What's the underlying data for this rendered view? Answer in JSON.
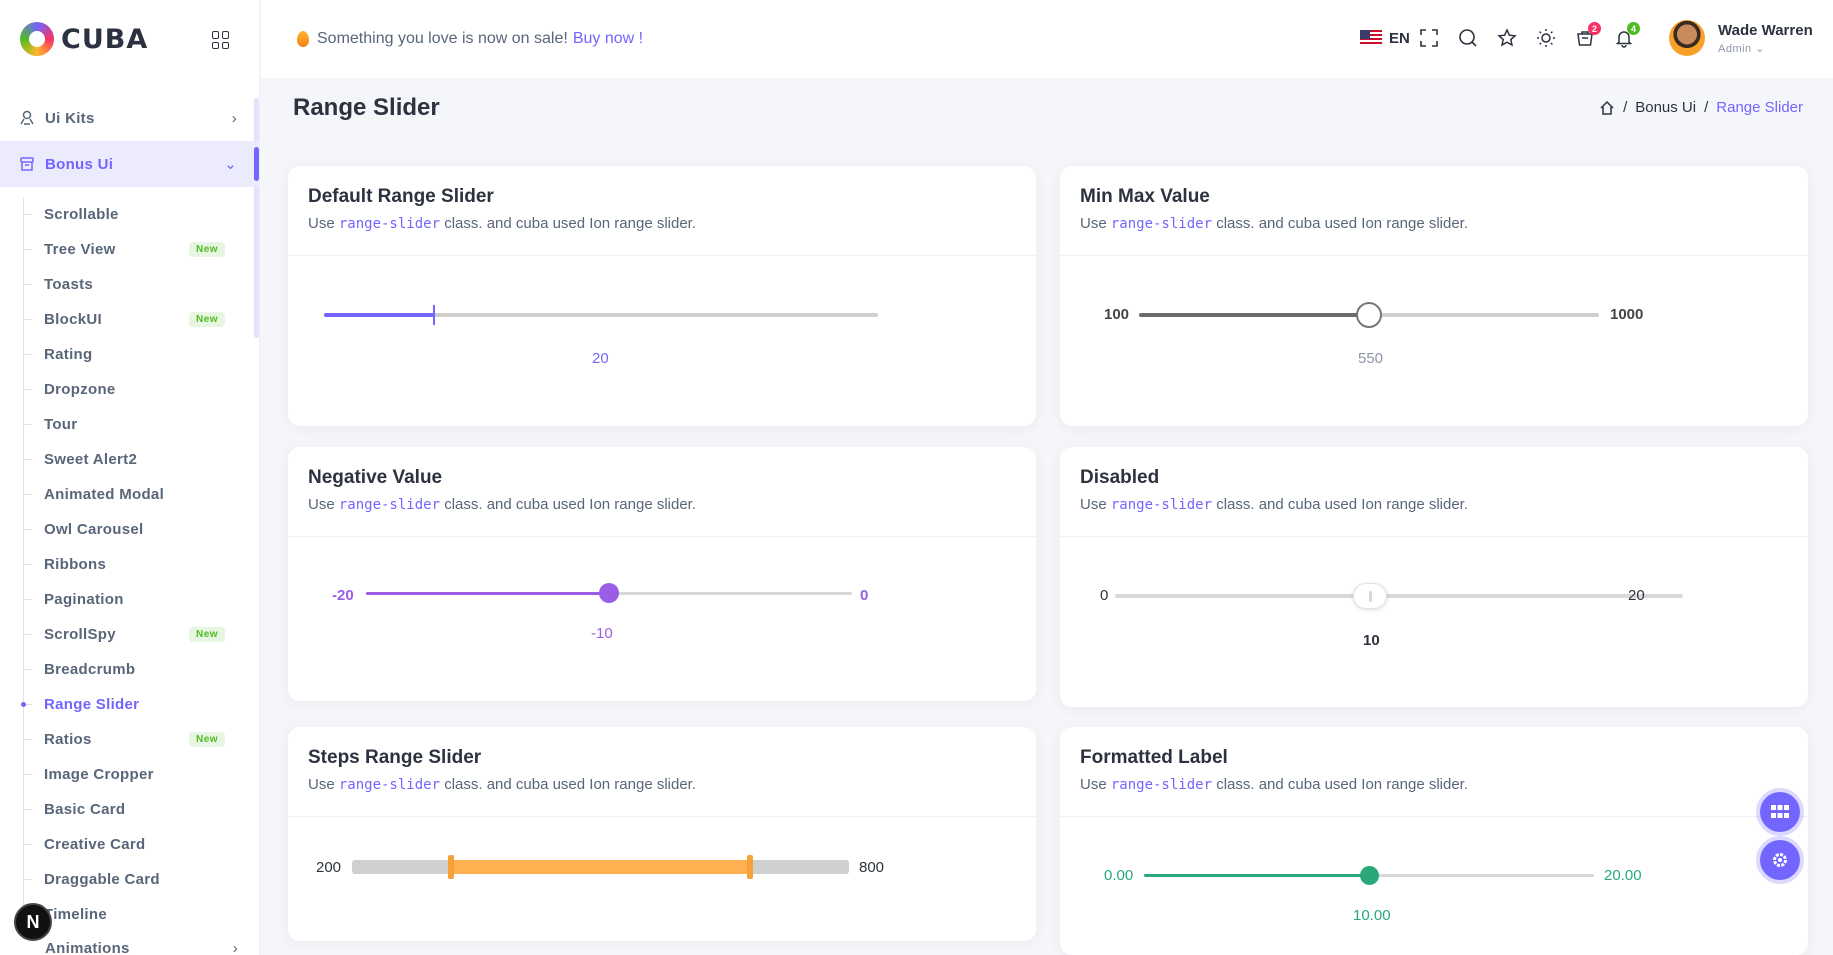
{
  "brand": {
    "name": "CUBA"
  },
  "sidebar": {
    "top_items": [
      {
        "label": "Ui Kits",
        "icon": "ui-kits-icon"
      },
      {
        "label": "Bonus Ui",
        "icon": "bonus-ui-icon"
      }
    ],
    "sub_items": [
      {
        "label": "Scrollable",
        "badge": ""
      },
      {
        "label": "Tree View",
        "badge": "New"
      },
      {
        "label": "Toasts",
        "badge": ""
      },
      {
        "label": "BlockUI",
        "badge": "New"
      },
      {
        "label": "Rating",
        "badge": ""
      },
      {
        "label": "Dropzone",
        "badge": ""
      },
      {
        "label": "Tour",
        "badge": ""
      },
      {
        "label": "Sweet Alert2",
        "badge": ""
      },
      {
        "label": "Animated Modal",
        "badge": ""
      },
      {
        "label": "Owl Carousel",
        "badge": ""
      },
      {
        "label": "Ribbons",
        "badge": ""
      },
      {
        "label": "Pagination",
        "badge": ""
      },
      {
        "label": "ScrollSpy",
        "badge": "New"
      },
      {
        "label": "Breadcrumb",
        "badge": ""
      },
      {
        "label": "Range Slider",
        "badge": ""
      },
      {
        "label": "Ratios",
        "badge": "New"
      },
      {
        "label": "Image Cropper",
        "badge": ""
      },
      {
        "label": "Basic Card",
        "badge": ""
      },
      {
        "label": "Creative Card",
        "badge": ""
      },
      {
        "label": "Draggable Card",
        "badge": ""
      },
      {
        "label": "Timeline",
        "badge": ""
      }
    ],
    "bottom_item": {
      "label": "Animations"
    },
    "dev_badge": "N"
  },
  "header": {
    "promo_text": "Something you love is now on sale!",
    "promo_link": "Buy now !",
    "language": "EN",
    "cart_count": "2",
    "notification_count": "4",
    "user_name": "Wade Warren",
    "user_role": "Admin"
  },
  "page": {
    "title": "Range Slider",
    "breadcrumb": [
      "Bonus Ui",
      "Range Slider"
    ]
  },
  "cards": {
    "class_name": "range-slider",
    "sub_prefix": "Use",
    "sub_suffix": "class. and cuba used Ion range slider.",
    "default": {
      "title": "Default Range Slider",
      "value": "20"
    },
    "minmax": {
      "title": "Min Max Value",
      "min": "100",
      "max": "1000",
      "value": "550"
    },
    "negative": {
      "title": "Negative Value",
      "min": "-20",
      "max": "0",
      "value": "-10"
    },
    "disabled": {
      "title": "Disabled",
      "min": "0",
      "max": "20",
      "value": "10"
    },
    "steps": {
      "title": "Steps Range Slider",
      "min": "200",
      "max": "800"
    },
    "formatted": {
      "title": "Formatted Label",
      "min": "0.00",
      "max": "20.00",
      "value": "10.00"
    }
  },
  "colors": {
    "primary": "#7366ff",
    "negative": "#9b5de5",
    "steps": "#ffb050",
    "formatted": "#2aa87a"
  }
}
